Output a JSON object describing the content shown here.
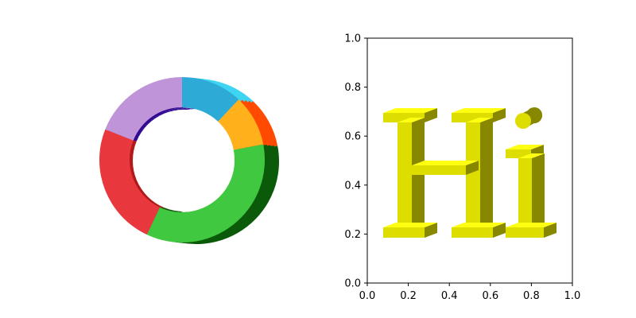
{
  "chart_data": [
    {
      "type": "pie",
      "style": "3d-donut",
      "title": "",
      "slices": [
        {
          "name": "",
          "value": 12,
          "color": "#2EAAD6",
          "side_color": "#3ED4F2"
        },
        {
          "name": "",
          "value": 10,
          "color": "#FFB01A",
          "side_color": "#FF4A00"
        },
        {
          "name": "",
          "value": 35,
          "color": "#40C840",
          "side_color": "#0A5A0A"
        },
        {
          "name": "",
          "value": 24,
          "color": "#E8383D",
          "side_color": "#B01A1A"
        },
        {
          "name": "",
          "value": 19,
          "color": "#C094D8",
          "side_color": "#300A90"
        }
      ]
    },
    {
      "type": "scatter",
      "title": "",
      "xlabel": "",
      "ylabel": "",
      "xlim": [
        0.0,
        1.0
      ],
      "ylim": [
        0.0,
        1.0
      ],
      "grid": false,
      "xticks": [
        "0.0",
        "0.2",
        "0.4",
        "0.6",
        "0.8",
        "1.0"
      ],
      "yticks": [
        "0.0",
        "0.2",
        "0.4",
        "0.6",
        "0.8",
        "1.0"
      ],
      "text_content": "Hi",
      "text_color": "#DDDD00",
      "text_side_color": "#888800",
      "text_top_color": "#FFFF11"
    }
  ]
}
